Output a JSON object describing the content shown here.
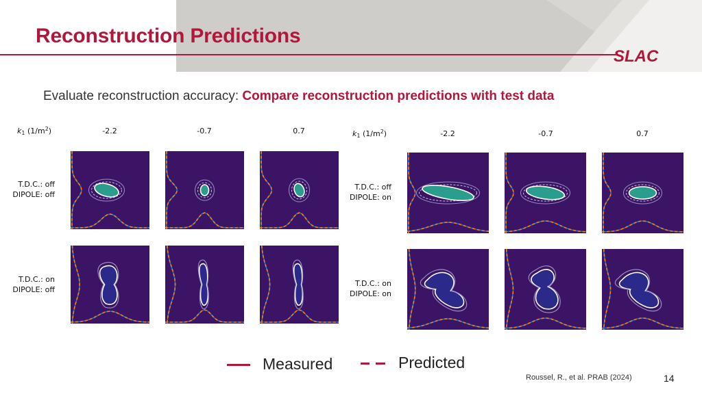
{
  "slide": {
    "title": "Reconstruction Predictions",
    "subtitle_prefix": "Evaluate reconstruction accuracy: ",
    "subtitle_highlight": "Compare reconstruction predictions with test data",
    "logo_text": "SLAC",
    "citation": "Roussel, R., et al. PRAB (2024)",
    "page_number": "14"
  },
  "colors": {
    "brand_red": "#b0173a",
    "gray_band": "#cfcdc9",
    "plot_bg": "#3b1466",
    "measured_line": "#1f77b4",
    "predicted_line": "#ff7f0e"
  },
  "legend": {
    "measured": "Measured",
    "predicted": "Predicted"
  },
  "figure_left": {
    "axis_label": "k1 (1/m2)",
    "columns": [
      "-2.2",
      "-0.7",
      "0.7"
    ],
    "rows": [
      {
        "line1": "T.D.C.: off",
        "line2": "DIPOLE: off"
      },
      {
        "line1": "T.D.C.: on",
        "line2": "DIPOLE: off"
      }
    ]
  },
  "figure_right": {
    "axis_label": "k1 (1/m2)",
    "columns": [
      "-2.2",
      "-0.7",
      "0.7"
    ],
    "rows": [
      {
        "line1": "T.D.C.: off",
        "line2": "DIPOLE: on"
      },
      {
        "line1": "T.D.C.: on",
        "line2": "DIPOLE: on"
      }
    ]
  }
}
